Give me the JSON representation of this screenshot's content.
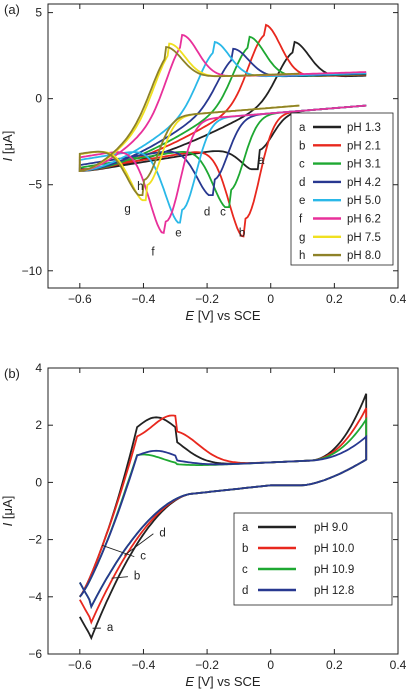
{
  "chart_data": [
    {
      "panel": "(a)",
      "type": "line",
      "xlabel_italic": "E",
      "xlabel_rest": " [V] vs SCE",
      "ylabel_italic": "I",
      "ylabel_rest": " [μA]",
      "xlim": [
        -0.7,
        0.4
      ],
      "ylim": [
        -11,
        5.5
      ],
      "xticks": [
        -0.6,
        -0.4,
        -0.2,
        0,
        0.2,
        0.4
      ],
      "xtick_labels": [
        "−0.6",
        "−0.4",
        "−0.2",
        "0",
        "0.2",
        "0.4"
      ],
      "yticks": [
        -10,
        -5,
        0,
        5
      ],
      "ytick_labels": [
        "−10",
        "−5",
        "0",
        "5"
      ],
      "legend_position": "right",
      "series": [
        {
          "letter": "a",
          "name": "pH 1.3",
          "color": "#222222",
          "x0": -0.6,
          "x1": 0.3,
          "ep_red": -0.04,
          "ip_red": -4.1,
          "ep_ox": 0.07,
          "ip_ox": 3.3
        },
        {
          "letter": "b",
          "name": "pH 2.1",
          "color": "#e8281e",
          "x0": -0.6,
          "x1": 0.3,
          "ep_red": -0.08,
          "ip_red": -8.0,
          "ep_ox": -0.02,
          "ip_ox": 4.3
        },
        {
          "letter": "c",
          "name": "pH 3.1",
          "color": "#1ea832",
          "x0": -0.6,
          "x1": 0.3,
          "ep_red": -0.13,
          "ip_red": -6.3,
          "ep_ox": -0.07,
          "ip_ox": 3.6
        },
        {
          "letter": "d",
          "name": "pH 4.2",
          "color": "#283890",
          "x0": -0.6,
          "x1": 0.3,
          "ep_red": -0.18,
          "ip_red": -5.6,
          "ep_ox": -0.12,
          "ip_ox": 2.9
        },
        {
          "letter": "e",
          "name": "pH 5.0",
          "color": "#2ab8e8",
          "x0": -0.6,
          "x1": 0.3,
          "ep_red": -0.28,
          "ip_red": -7.2,
          "ep_ox": -0.18,
          "ip_ox": 3.3
        },
        {
          "letter": "f",
          "name": "pH 6.2",
          "color": "#e8309a",
          "x0": -0.6,
          "x1": 0.3,
          "ep_red": -0.33,
          "ip_red": -7.8,
          "ep_ox": -0.28,
          "ip_ox": 3.7
        },
        {
          "letter": "g",
          "name": "pH 7.5",
          "color": "#f0e020",
          "x0": -0.6,
          "x1": 0.09,
          "ep_red": -0.39,
          "ip_red": -5.9,
          "ep_ox": -0.32,
          "ip_ox": 3.2
        },
        {
          "letter": "h",
          "name": "pH 8.0",
          "color": "#8e8228",
          "x0": -0.6,
          "x1": 0.09,
          "ep_red": -0.4,
          "ip_red": -5.6,
          "ep_ox": -0.33,
          "ip_ox": 3.0
        }
      ],
      "annotations": [
        {
          "text": "a",
          "x": -0.03,
          "y": -3.8
        },
        {
          "text": "b",
          "x": -0.09,
          "y": -8.0
        },
        {
          "text": "c",
          "x": -0.15,
          "y": -6.8
        },
        {
          "text": "d",
          "x": -0.2,
          "y": -6.8
        },
        {
          "text": "e",
          "x": -0.29,
          "y": -8.0
        },
        {
          "text": "f",
          "x": -0.37,
          "y": -9.1
        },
        {
          "text": "g",
          "x": -0.45,
          "y": -6.6
        },
        {
          "text": "h",
          "x": -0.41,
          "y": -5.3
        }
      ]
    },
    {
      "panel": "(b)",
      "type": "line",
      "xlabel_italic": "E",
      "xlabel_rest": " [V] vs SCE",
      "ylabel_italic": "I",
      "ylabel_rest": " [μA]",
      "xlim": [
        -0.7,
        0.4
      ],
      "ylim": [
        -6,
        4
      ],
      "xticks": [
        -0.6,
        -0.4,
        -0.2,
        0,
        0.2,
        0.4
      ],
      "xtick_labels": [
        "−0.6",
        "−0.4",
        "−0.2",
        "0",
        "0.2",
        "0.4"
      ],
      "yticks": [
        -6,
        -4,
        -2,
        0,
        2,
        4
      ],
      "ytick_labels": [
        "−6",
        "−4",
        "−2",
        "0",
        "2",
        "4"
      ],
      "legend_position": "lower-right",
      "series": [
        {
          "letter": "a",
          "name": "pH 9.0",
          "color": "#222222",
          "ip_red": -5.3,
          "ip_ox": 1.75,
          "ep_ox": -0.36,
          "i_end_ox": 3.25
        },
        {
          "letter": "b",
          "name": "pH 10.0",
          "color": "#e8281e",
          "ip_red": -4.7,
          "ip_ox": 1.8,
          "ep_ox": -0.31,
          "i_end_ox": 2.75
        },
        {
          "letter": "c",
          "name": "pH 10.9",
          "color": "#1ea832",
          "ip_red": -4.1,
          "ip_ox": 0.75,
          "ep_ox": -0.4,
          "i_end_ox": 2.35
        },
        {
          "letter": "d",
          "name": "pH 12.8",
          "color": "#283890",
          "ip_red": -4.1,
          "ip_ox": 0.85,
          "ep_ox": -0.36,
          "i_end_ox": 1.75
        }
      ],
      "annotations": [
        {
          "text": "a",
          "x": -0.515,
          "y": -5.2,
          "ax": -0.56,
          "ay": -5.1
        },
        {
          "text": "b",
          "x": -0.43,
          "y": -3.4,
          "ax": -0.5,
          "ay": -3.35
        },
        {
          "text": "c",
          "x": -0.41,
          "y": -2.7,
          "ax": -0.53,
          "ay": -2.2
        },
        {
          "text": "d",
          "x": -0.35,
          "y": -1.9,
          "ax": -0.46,
          "ay": -2.55
        }
      ]
    }
  ]
}
